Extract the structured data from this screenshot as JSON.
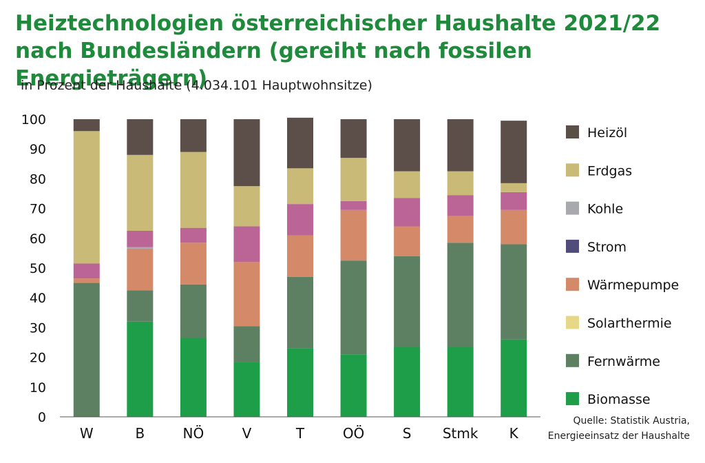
{
  "header": {
    "title_line1": "Heiztechnologien österreichischer Haushalte 2021/22",
    "title_line2": "nach Bundesländern (gereiht nach fossilen Energieträgern)",
    "subtitle": "in Prozent der Haushalte (4.034.101 Hauptwohnsitze)"
  },
  "source": {
    "line1": "Quelle: Statistik Austria,",
    "line2": "Energieeinsatz der Haushalte"
  },
  "chart_data": {
    "type": "bar",
    "stacked": true,
    "title": "Heiztechnologien österreichischer Haushalte 2021/22 nach Bundesländern (gereiht nach fossilen Energieträgern)",
    "ylabel": "in Prozent der Haushalte (4.034.101 Hauptwohnsitze)",
    "xlabel": "",
    "ylim": [
      0,
      100
    ],
    "yticks": [
      0,
      10,
      20,
      30,
      40,
      50,
      60,
      70,
      80,
      90,
      100
    ],
    "grid": false,
    "legend_position": "right",
    "categories": [
      "W",
      "B",
      "NÖ",
      "V",
      "T",
      "OÖ",
      "S",
      "Stmk",
      "K"
    ],
    "series": [
      {
        "name": "Biomasse",
        "color": "#1e9e48",
        "values": [
          0,
          32,
          26.5,
          18.5,
          23,
          21,
          23.5,
          23.5,
          26
        ]
      },
      {
        "name": "Fernwärme",
        "color": "#5c8061",
        "values": [
          45,
          10.5,
          18,
          12,
          24,
          31.5,
          30.5,
          35,
          32
        ]
      },
      {
        "name": "Solarthermie",
        "color": "#e6d888",
        "values": [
          0,
          0,
          0,
          0,
          0,
          0,
          0,
          0,
          0
        ]
      },
      {
        "name": "Wärmepumpe",
        "color": "#d48a68",
        "values": [
          1.5,
          14,
          14,
          21.5,
          14,
          17,
          10,
          9,
          11.5
        ]
      },
      {
        "name": "Strom",
        "color": "#514c7a",
        "values": [
          0,
          0,
          0,
          0,
          0,
          0,
          0,
          0,
          0
        ]
      },
      {
        "name": "Kohle",
        "color": "#a8a9ad",
        "values": [
          0,
          0.5,
          0,
          0,
          0,
          0,
          0,
          0,
          0
        ]
      },
      {
        "name": "Erdgas",
        "color": "#c9bb77",
        "values": [
          44.5,
          25.5,
          25.5,
          13.5,
          12,
          14.5,
          9,
          8,
          3
        ]
      },
      {
        "name": "Heizöl",
        "color": "#5c4f49",
        "values": [
          4,
          12,
          11,
          22.5,
          17,
          13,
          17.5,
          17.5,
          21
        ]
      }
    ],
    "overlay_series": {
      "name": "",
      "color": "#bb6496",
      "values": [
        5,
        5.5,
        5,
        12,
        10.5,
        3,
        9.5,
        7,
        6
      ]
    },
    "legend": [
      "Heizöl",
      "Erdgas",
      "Kohle",
      "Strom",
      "Wärmepumpe",
      "Solarthermie",
      "Fernwärme",
      "Biomasse"
    ]
  }
}
